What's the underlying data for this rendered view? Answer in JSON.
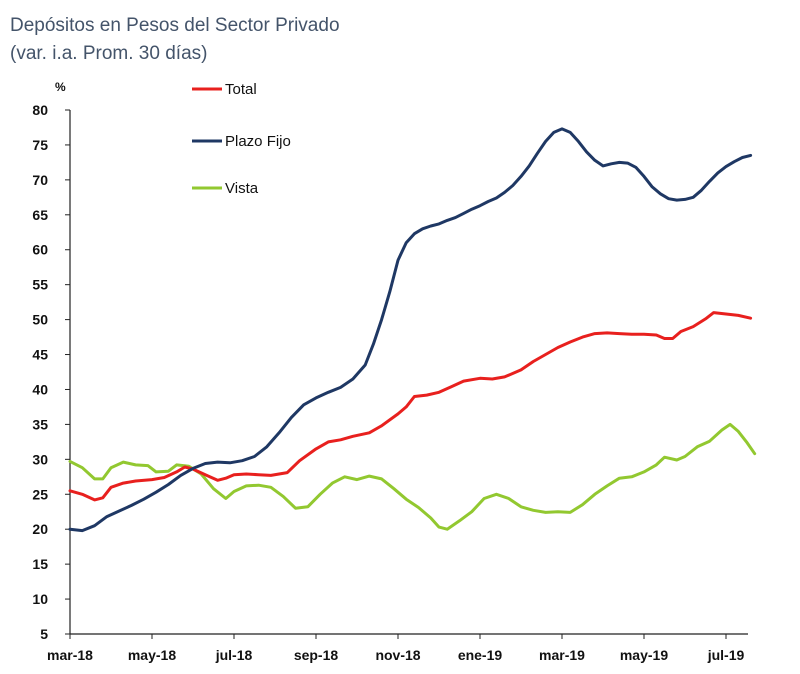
{
  "chart_data": {
    "type": "line",
    "title": "Depósitos en Pesos del Sector Privado",
    "subtitle": "(var. i.a. Prom. 30 días)",
    "ylabel": "%",
    "xlabel": "",
    "ylim": [
      5,
      80
    ],
    "yticks": [
      5,
      10,
      15,
      20,
      25,
      30,
      35,
      40,
      45,
      50,
      55,
      60,
      65,
      70,
      75,
      80
    ],
    "xlim": [
      0,
      16.7
    ],
    "x_tick_labels": [
      "mar-18",
      "may-18",
      "jul-18",
      "sep-18",
      "nov-18",
      "ene-19",
      "mar-19",
      "may-19",
      "jul-19"
    ],
    "x_tick_positions": [
      0,
      2,
      4,
      6,
      8,
      10,
      12,
      14,
      16
    ],
    "grid": false,
    "legend_position": "top-left",
    "series": [
      {
        "name": "Total",
        "color": "#E8201E",
        "points": [
          [
            0,
            25.5
          ],
          [
            0.3,
            25
          ],
          [
            0.6,
            24.2
          ],
          [
            0.8,
            24.5
          ],
          [
            1.0,
            26
          ],
          [
            1.3,
            26.6
          ],
          [
            1.6,
            26.9
          ],
          [
            2.0,
            27.1
          ],
          [
            2.3,
            27.4
          ],
          [
            2.6,
            28.2
          ],
          [
            2.8,
            28.9
          ],
          [
            3.0,
            28.6
          ],
          [
            3.3,
            27.8
          ],
          [
            3.6,
            27
          ],
          [
            3.8,
            27.3
          ],
          [
            4.0,
            27.8
          ],
          [
            4.3,
            27.9
          ],
          [
            4.6,
            27.8
          ],
          [
            4.9,
            27.7
          ],
          [
            5.3,
            28.1
          ],
          [
            5.6,
            29.8
          ],
          [
            6.0,
            31.5
          ],
          [
            6.3,
            32.5
          ],
          [
            6.6,
            32.8
          ],
          [
            6.9,
            33.3
          ],
          [
            7.3,
            33.8
          ],
          [
            7.6,
            34.8
          ],
          [
            8.0,
            36.5
          ],
          [
            8.2,
            37.5
          ],
          [
            8.4,
            39
          ],
          [
            8.7,
            39.2
          ],
          [
            9.0,
            39.6
          ],
          [
            9.3,
            40.4
          ],
          [
            9.6,
            41.2
          ],
          [
            10.0,
            41.6
          ],
          [
            10.3,
            41.5
          ],
          [
            10.6,
            41.8
          ],
          [
            11.0,
            42.8
          ],
          [
            11.3,
            44
          ],
          [
            11.6,
            45
          ],
          [
            11.9,
            46
          ],
          [
            12.2,
            46.8
          ],
          [
            12.5,
            47.5
          ],
          [
            12.8,
            48
          ],
          [
            13.1,
            48.1
          ],
          [
            13.4,
            48
          ],
          [
            13.7,
            47.9
          ],
          [
            14.0,
            47.9
          ],
          [
            14.3,
            47.8
          ],
          [
            14.5,
            47.3
          ],
          [
            14.7,
            47.3
          ],
          [
            14.9,
            48.3
          ],
          [
            15.2,
            49
          ],
          [
            15.5,
            50.1
          ],
          [
            15.7,
            51
          ],
          [
            16.0,
            50.8
          ],
          [
            16.3,
            50.6
          ],
          [
            16.6,
            50.2
          ]
        ]
      },
      {
        "name": "Plazo Fijo",
        "color": "#1F3864",
        "points": [
          [
            0,
            20
          ],
          [
            0.3,
            19.8
          ],
          [
            0.6,
            20.5
          ],
          [
            0.9,
            21.8
          ],
          [
            1.2,
            22.6
          ],
          [
            1.5,
            23.4
          ],
          [
            1.8,
            24.3
          ],
          [
            2.1,
            25.3
          ],
          [
            2.4,
            26.4
          ],
          [
            2.7,
            27.7
          ],
          [
            3.0,
            28.7
          ],
          [
            3.3,
            29.4
          ],
          [
            3.6,
            29.6
          ],
          [
            3.9,
            29.5
          ],
          [
            4.2,
            29.8
          ],
          [
            4.5,
            30.4
          ],
          [
            4.8,
            31.8
          ],
          [
            5.1,
            33.8
          ],
          [
            5.4,
            36
          ],
          [
            5.7,
            37.8
          ],
          [
            6.0,
            38.8
          ],
          [
            6.3,
            39.6
          ],
          [
            6.6,
            40.3
          ],
          [
            6.9,
            41.5
          ],
          [
            7.2,
            43.5
          ],
          [
            7.4,
            46.5
          ],
          [
            7.6,
            50
          ],
          [
            7.8,
            54
          ],
          [
            8.0,
            58.5
          ],
          [
            8.2,
            61
          ],
          [
            8.4,
            62.3
          ],
          [
            8.6,
            63
          ],
          [
            8.8,
            63.4
          ],
          [
            9.0,
            63.7
          ],
          [
            9.2,
            64.2
          ],
          [
            9.4,
            64.6
          ],
          [
            9.6,
            65.2
          ],
          [
            9.8,
            65.8
          ],
          [
            10.0,
            66.3
          ],
          [
            10.2,
            66.9
          ],
          [
            10.4,
            67.4
          ],
          [
            10.6,
            68.2
          ],
          [
            10.8,
            69.2
          ],
          [
            11.0,
            70.5
          ],
          [
            11.2,
            72
          ],
          [
            11.4,
            73.8
          ],
          [
            11.6,
            75.5
          ],
          [
            11.8,
            76.8
          ],
          [
            12.0,
            77.3
          ],
          [
            12.2,
            76.8
          ],
          [
            12.4,
            75.5
          ],
          [
            12.6,
            74
          ],
          [
            12.8,
            72.8
          ],
          [
            13.0,
            72
          ],
          [
            13.2,
            72.3
          ],
          [
            13.4,
            72.5
          ],
          [
            13.6,
            72.4
          ],
          [
            13.8,
            71.8
          ],
          [
            14.0,
            70.5
          ],
          [
            14.2,
            69
          ],
          [
            14.4,
            68
          ],
          [
            14.6,
            67.3
          ],
          [
            14.8,
            67.1
          ],
          [
            15.0,
            67.2
          ],
          [
            15.2,
            67.5
          ],
          [
            15.4,
            68.5
          ],
          [
            15.6,
            69.8
          ],
          [
            15.8,
            71
          ],
          [
            16.0,
            71.9
          ],
          [
            16.2,
            72.6
          ],
          [
            16.4,
            73.2
          ],
          [
            16.6,
            73.5
          ]
        ]
      },
      {
        "name": "Vista",
        "color": "#92C830",
        "points": [
          [
            0,
            29.7
          ],
          [
            0.3,
            28.8
          ],
          [
            0.6,
            27.2
          ],
          [
            0.8,
            27.2
          ],
          [
            1.0,
            28.8
          ],
          [
            1.3,
            29.6
          ],
          [
            1.6,
            29.2
          ],
          [
            1.9,
            29.1
          ],
          [
            2.1,
            28.2
          ],
          [
            2.4,
            28.3
          ],
          [
            2.6,
            29.2
          ],
          [
            2.9,
            29
          ],
          [
            3.2,
            27.9
          ],
          [
            3.5,
            25.8
          ],
          [
            3.8,
            24.4
          ],
          [
            4.0,
            25.4
          ],
          [
            4.3,
            26.2
          ],
          [
            4.6,
            26.3
          ],
          [
            4.9,
            26
          ],
          [
            5.2,
            24.7
          ],
          [
            5.5,
            23
          ],
          [
            5.8,
            23.2
          ],
          [
            6.1,
            25
          ],
          [
            6.4,
            26.6
          ],
          [
            6.7,
            27.5
          ],
          [
            7.0,
            27.1
          ],
          [
            7.3,
            27.6
          ],
          [
            7.6,
            27.2
          ],
          [
            7.9,
            25.8
          ],
          [
            8.2,
            24.3
          ],
          [
            8.5,
            23.1
          ],
          [
            8.8,
            21.6
          ],
          [
            9.0,
            20.3
          ],
          [
            9.2,
            20
          ],
          [
            9.5,
            21.2
          ],
          [
            9.8,
            22.5
          ],
          [
            10.1,
            24.4
          ],
          [
            10.4,
            25
          ],
          [
            10.7,
            24.4
          ],
          [
            11.0,
            23.2
          ],
          [
            11.3,
            22.7
          ],
          [
            11.6,
            22.4
          ],
          [
            11.9,
            22.5
          ],
          [
            12.2,
            22.4
          ],
          [
            12.5,
            23.5
          ],
          [
            12.8,
            25
          ],
          [
            13.1,
            26.2
          ],
          [
            13.4,
            27.3
          ],
          [
            13.7,
            27.5
          ],
          [
            14.0,
            28.2
          ],
          [
            14.3,
            29.2
          ],
          [
            14.5,
            30.3
          ],
          [
            14.8,
            29.9
          ],
          [
            15.0,
            30.4
          ],
          [
            15.3,
            31.8
          ],
          [
            15.6,
            32.6
          ],
          [
            15.9,
            34.2
          ],
          [
            16.1,
            35
          ],
          [
            16.3,
            34
          ],
          [
            16.5,
            32.5
          ],
          [
            16.7,
            30.8
          ]
        ]
      }
    ]
  }
}
